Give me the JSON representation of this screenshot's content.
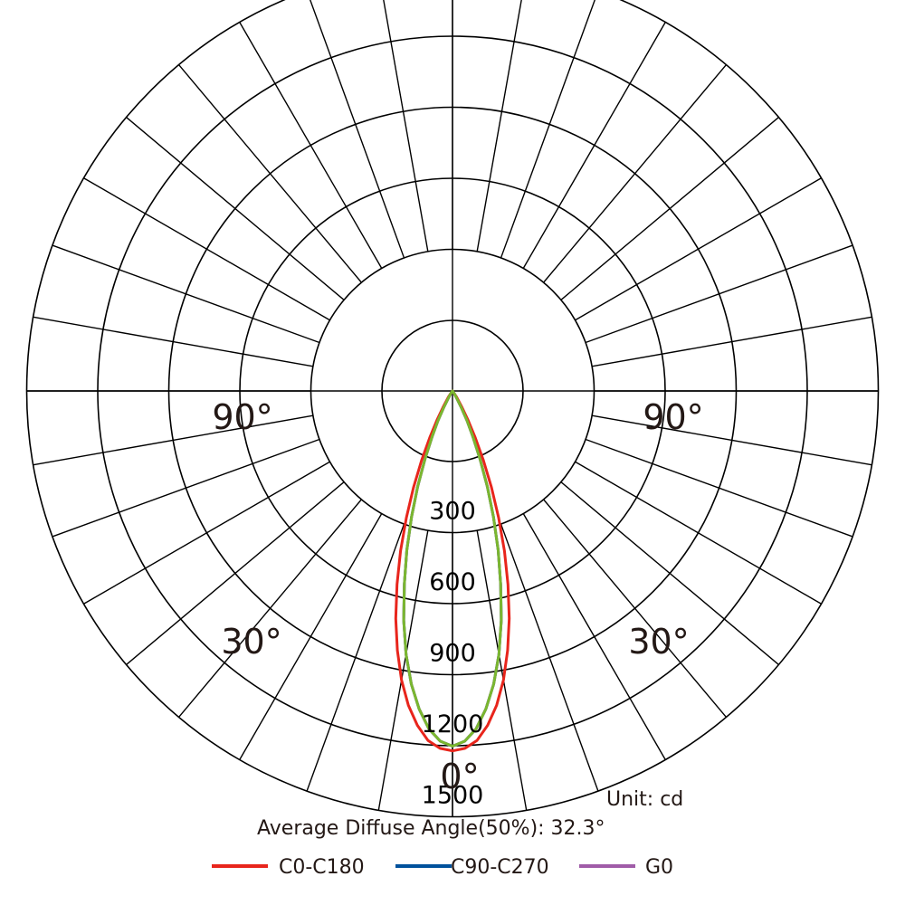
{
  "chart_data": {
    "type": "polar",
    "unit": "Unit: cd",
    "average_angle": "Average Diffuse Angle(50%): 32.3°",
    "rmax": 1500,
    "ring_values": [
      300,
      600,
      900,
      1200,
      1500
    ],
    "ring_labels": [
      "300",
      "600",
      "900",
      "1200",
      "1500"
    ],
    "angle_labels": {
      "left_90": "90°",
      "right_90": "90°",
      "left_30": "30°",
      "right_30": "30°",
      "bottom_0": "0°"
    },
    "legend": [
      "C0-C180",
      "C90-C270",
      "G0"
    ],
    "series": [
      {
        "name": "C0-C180",
        "color": "#e8251c",
        "angles": [
          0,
          2,
          4,
          6,
          8,
          10,
          12,
          14,
          16,
          18,
          20,
          22,
          24,
          26,
          28,
          30,
          34,
          40
        ],
        "values": [
          1520,
          1510,
          1480,
          1420,
          1340,
          1240,
          1120,
          990,
          850,
          710,
          570,
          440,
          320,
          220,
          140,
          80,
          30,
          0
        ]
      },
      {
        "name": "C90-C270",
        "color": "#00519c",
        "angles": [
          0,
          2,
          4,
          6,
          8,
          10,
          12,
          14,
          16,
          18,
          20,
          22,
          24,
          26,
          28,
          30,
          34,
          40
        ],
        "values": [
          1500,
          1480,
          1430,
          1350,
          1250,
          1130,
          990,
          840,
          700,
          560,
          430,
          310,
          210,
          140,
          80,
          40,
          15,
          0
        ]
      },
      {
        "name": "G0",
        "color": "#a05ca8",
        "angles": [
          0,
          2,
          4,
          6,
          8,
          10,
          12,
          14,
          16,
          18,
          20,
          22,
          24,
          26,
          28,
          30,
          34,
          40
        ],
        "values": [
          1500,
          1480,
          1430,
          1350,
          1250,
          1130,
          990,
          840,
          700,
          560,
          430,
          310,
          210,
          140,
          80,
          40,
          15,
          0
        ]
      },
      {
        "name": "",
        "color": "#7ab72f",
        "angles": [
          0,
          2,
          4,
          6,
          8,
          10,
          12,
          14,
          16,
          18,
          20,
          22,
          24,
          26,
          28,
          30,
          34,
          40
        ],
        "values": [
          1500,
          1480,
          1430,
          1350,
          1250,
          1130,
          990,
          840,
          700,
          560,
          430,
          310,
          210,
          140,
          80,
          40,
          15,
          0
        ]
      }
    ]
  }
}
